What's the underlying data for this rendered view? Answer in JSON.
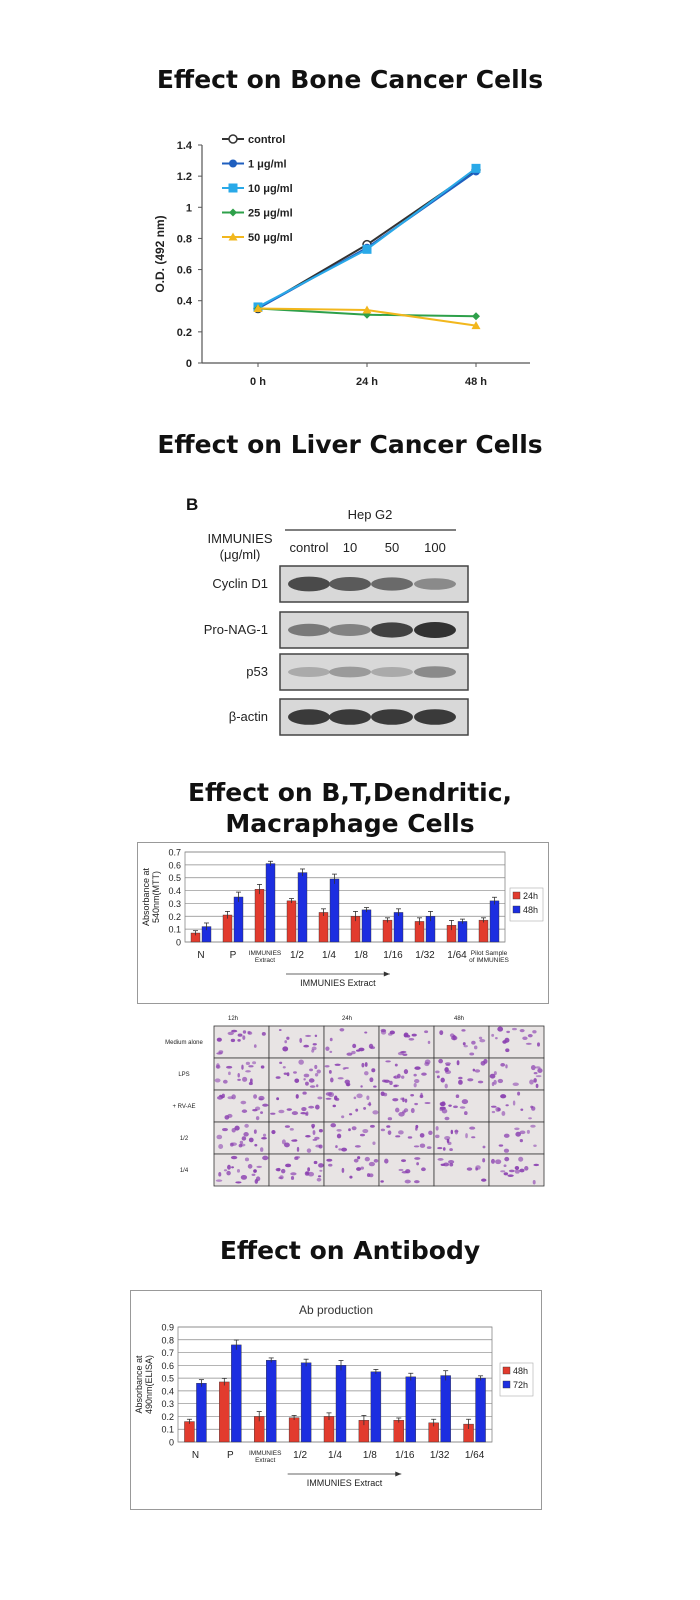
{
  "sections": {
    "bone": "Effect on Bone Cancer Cells",
    "liver": "Effect on Liver Cancer Cells",
    "immune_line1": "Effect on B,T,Dendritic,",
    "immune_line2": "Macraphage Cells",
    "antibody": "Effect on Antibody"
  },
  "chart_data": [
    {
      "type": "line",
      "x": [
        "0 h",
        "24 h",
        "48 h"
      ],
      "ylabel": "O.D. (492 nm)",
      "ylim": [
        0,
        1.4
      ],
      "yticks": [
        "0",
        "0.2",
        "0.4",
        "0.6",
        "0.8",
        "1",
        "1.2",
        "1.4"
      ],
      "legend_position": "top-left",
      "series": [
        {
          "name": "control",
          "values": [
            0.35,
            0.76,
            1.24
          ],
          "color": "#333333",
          "marker": "open-circle"
        },
        {
          "name": "1 μg/ml",
          "values": [
            0.35,
            0.74,
            1.23
          ],
          "color": "#1f5fbf",
          "marker": "circle"
        },
        {
          "name": "10 μg/ml",
          "values": [
            0.36,
            0.73,
            1.25
          ],
          "color": "#29a9e8",
          "marker": "square"
        },
        {
          "name": "25 μg/ml",
          "values": [
            0.35,
            0.31,
            0.3
          ],
          "color": "#2ea04a",
          "marker": "diamond"
        },
        {
          "name": "50 μg/ml",
          "values": [
            0.35,
            0.34,
            0.24
          ],
          "color": "#f2b71d",
          "marker": "triangle"
        }
      ]
    },
    {
      "type": "bar",
      "categories": [
        "N",
        "P",
        "IMMUNIES Extract",
        "1/2",
        "1/4",
        "1/8",
        "1/16",
        "1/32",
        "1/64",
        "Pilot Sample of IMMUNIES"
      ],
      "ylabel_line1": "Absorbance at",
      "ylabel_line2": "540nm(MTT)",
      "xlabel": "IMMUNIES Extract",
      "ylim": [
        0,
        0.7
      ],
      "yticks": [
        "0",
        "0.1",
        "0.2",
        "0.3",
        "0.4",
        "0.5",
        "0.6",
        "0.7"
      ],
      "legend_position": "right",
      "series": [
        {
          "name": "24h",
          "color": "#e23b2e",
          "values": [
            0.07,
            0.21,
            0.41,
            0.32,
            0.23,
            0.2,
            0.17,
            0.16,
            0.13,
            0.17
          ]
        },
        {
          "name": "48h",
          "color": "#1c2ee0",
          "values": [
            0.12,
            0.35,
            0.61,
            0.54,
            0.49,
            0.25,
            0.23,
            0.2,
            0.16,
            0.32
          ]
        }
      ]
    },
    {
      "type": "bar",
      "title": "Ab production",
      "categories": [
        "N",
        "P",
        "IMMUNIES Extract",
        "1/2",
        "1/4",
        "1/8",
        "1/16",
        "1/32",
        "1/64"
      ],
      "ylabel_line1": "Absorbance at",
      "ylabel_line2": "490nm(ELISA)",
      "xlabel": "IMMUNIES Extract",
      "ylim": [
        0,
        0.9
      ],
      "yticks": [
        "0",
        "0.1",
        "0.2",
        "0.3",
        "0.4",
        "0.5",
        "0.6",
        "0.7",
        "0.8",
        "0.9"
      ],
      "legend_position": "right",
      "series": [
        {
          "name": "48h",
          "color": "#e23b2e",
          "values": [
            0.16,
            0.47,
            0.2,
            0.19,
            0.2,
            0.17,
            0.17,
            0.15,
            0.14
          ]
        },
        {
          "name": "72h",
          "color": "#1c2ee0",
          "values": [
            0.46,
            0.76,
            0.64,
            0.62,
            0.6,
            0.55,
            0.51,
            0.52,
            0.5
          ]
        }
      ]
    }
  ],
  "western_blot": {
    "panel_label": "B",
    "cell_line": "Hep G2",
    "treatment_line1": "IMMUNIES",
    "treatment_line2": "(μg/ml)",
    "lanes": [
      "control",
      "10",
      "50",
      "100"
    ],
    "rows": [
      {
        "label": "Cyclin D1",
        "intensities": [
          0.85,
          0.75,
          0.65,
          0.45
        ]
      },
      {
        "label": "Pro-NAG-1",
        "intensities": [
          0.55,
          0.5,
          0.9,
          1.0
        ]
      },
      {
        "label": "p53",
        "intensities": [
          0.25,
          0.35,
          0.25,
          0.45
        ]
      },
      {
        "label": "β-actin",
        "intensities": [
          0.95,
          0.95,
          0.95,
          0.95
        ]
      }
    ]
  },
  "micrograph": {
    "time_labels": [
      "12h",
      "24h",
      "48h"
    ],
    "row_labels": [
      "Medium alone",
      "LPS",
      "+ RV-AE",
      "1/2",
      "1/4"
    ],
    "cell_color": "#8a3fb0",
    "background": "#e8e4e4"
  }
}
